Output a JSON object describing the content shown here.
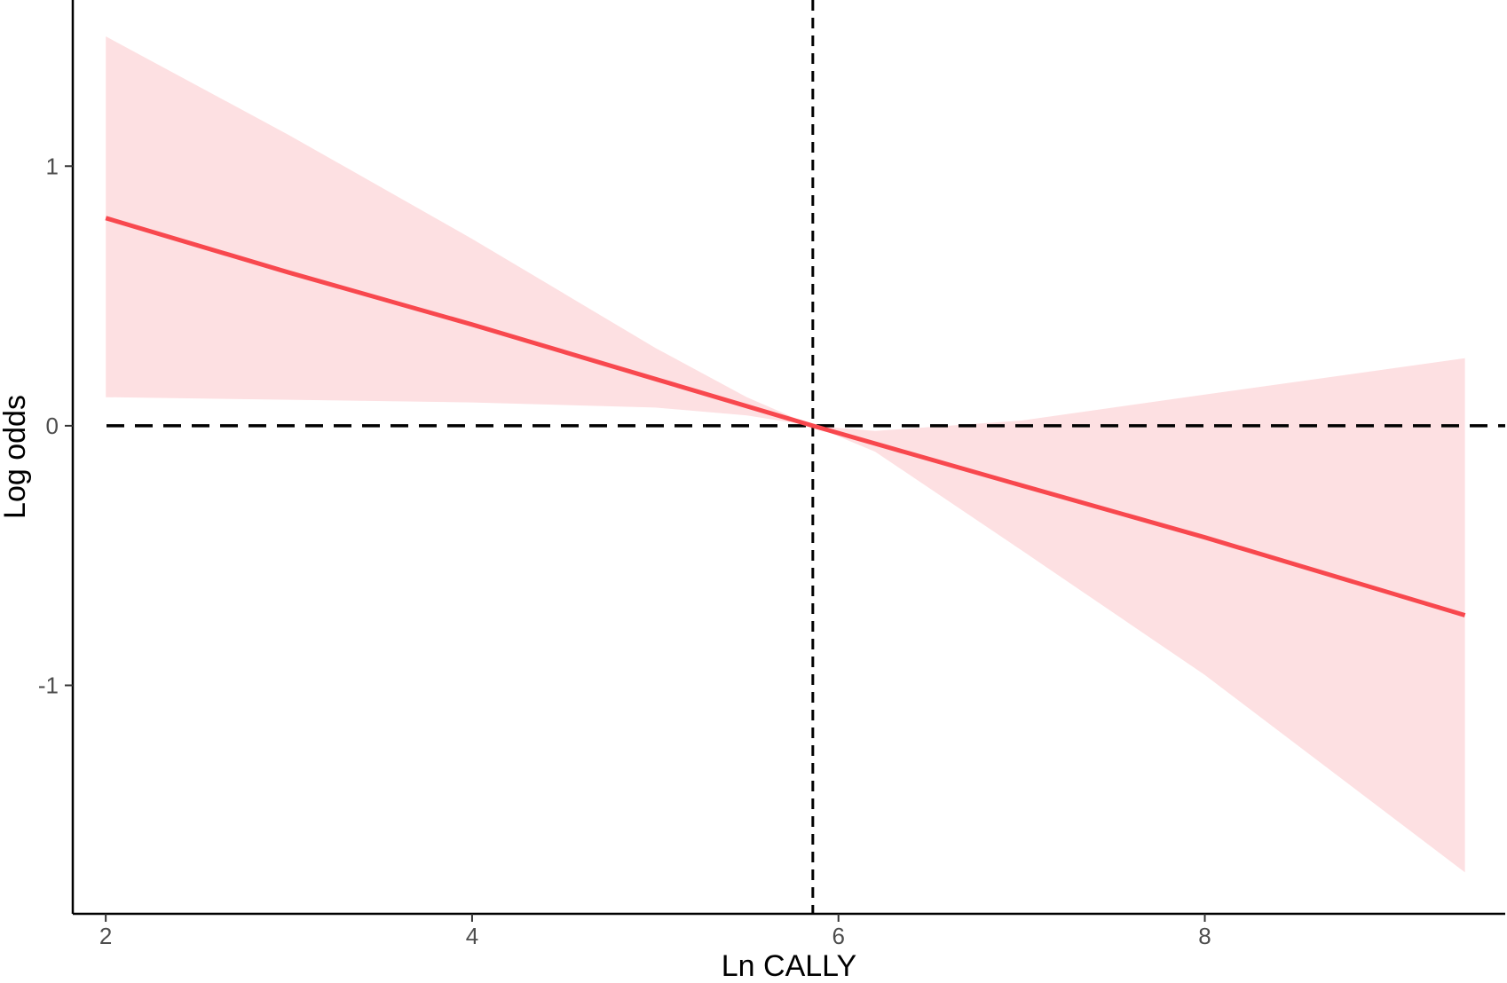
{
  "chart_data": {
    "type": "line",
    "xlabel": "Ln CALLY",
    "ylabel": "Log odds",
    "xlim": [
      1.82,
      9.64
    ],
    "ylim": [
      -1.88,
      1.64
    ],
    "x_ticks": [
      2,
      4,
      6,
      8
    ],
    "x_tick_labels": [
      "2",
      "4",
      "6",
      "8"
    ],
    "y_ticks": [
      1,
      0,
      -1
    ],
    "y_tick_labels": [
      "1",
      "0",
      "-1"
    ],
    "grid": false,
    "legend": "none",
    "reference_lines": {
      "horizontal_y": 0,
      "vertical_x": 5.86,
      "style": "dashed",
      "color": "#000000"
    },
    "series": [
      {
        "x": [
          2.0,
          3.0,
          4.0,
          5.0,
          5.86,
          7.0,
          8.0,
          9.42
        ],
        "values": [
          0.8,
          0.59,
          0.39,
          0.18,
          0.0,
          -0.23,
          -0.43,
          -0.73
        ],
        "color": "#f8484e"
      }
    ],
    "confidence_band": {
      "x": [
        2.0,
        3.0,
        4.0,
        5.0,
        5.5,
        5.86,
        6.2,
        7.0,
        8.0,
        9.42
      ],
      "upper": [
        1.5,
        1.12,
        0.72,
        0.3,
        0.11,
        0.0,
        -0.02,
        0.02,
        0.12,
        0.26
      ],
      "lower": [
        0.11,
        0.1,
        0.09,
        0.07,
        0.04,
        0.0,
        -0.1,
        -0.48,
        -0.96,
        -1.72
      ],
      "color": "#fde0e2"
    }
  }
}
